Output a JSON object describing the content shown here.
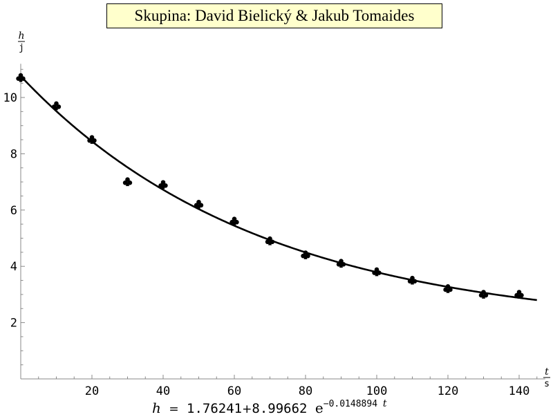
{
  "chart_data": {
    "type": "scatter",
    "title": "Skupina: David Bielický & Jakub Tomaides",
    "xlabel": {
      "num": "t",
      "den": "s"
    },
    "ylabel": {
      "num": "h",
      "den": "j"
    },
    "xlim": [
      0,
      145
    ],
    "ylim": [
      0,
      11
    ],
    "xticks": [
      20,
      40,
      60,
      80,
      100,
      120,
      140
    ],
    "yticks": [
      2,
      4,
      6,
      8,
      10
    ],
    "grid": false,
    "series": [
      {
        "marker": "club",
        "x": [
          0,
          10,
          20,
          30,
          40,
          50,
          60,
          70,
          80,
          90,
          100,
          110,
          120,
          130,
          140
        ],
        "y": [
          10.7,
          9.7,
          8.5,
          7.0,
          6.9,
          6.2,
          5.6,
          4.9,
          4.4,
          4.1,
          3.8,
          3.5,
          3.2,
          3.0,
          3.0
        ]
      }
    ],
    "fit": {
      "a": 1.76241,
      "b": 8.99662,
      "k": -0.0148894,
      "x_range": [
        0,
        145
      ]
    },
    "formula": {
      "lhs": "h",
      "eq": "=",
      "a": "1.76241",
      "plus": "+",
      "b": "8.99662",
      "base": "e",
      "exp": "−0.0148894",
      "var": "t"
    }
  }
}
